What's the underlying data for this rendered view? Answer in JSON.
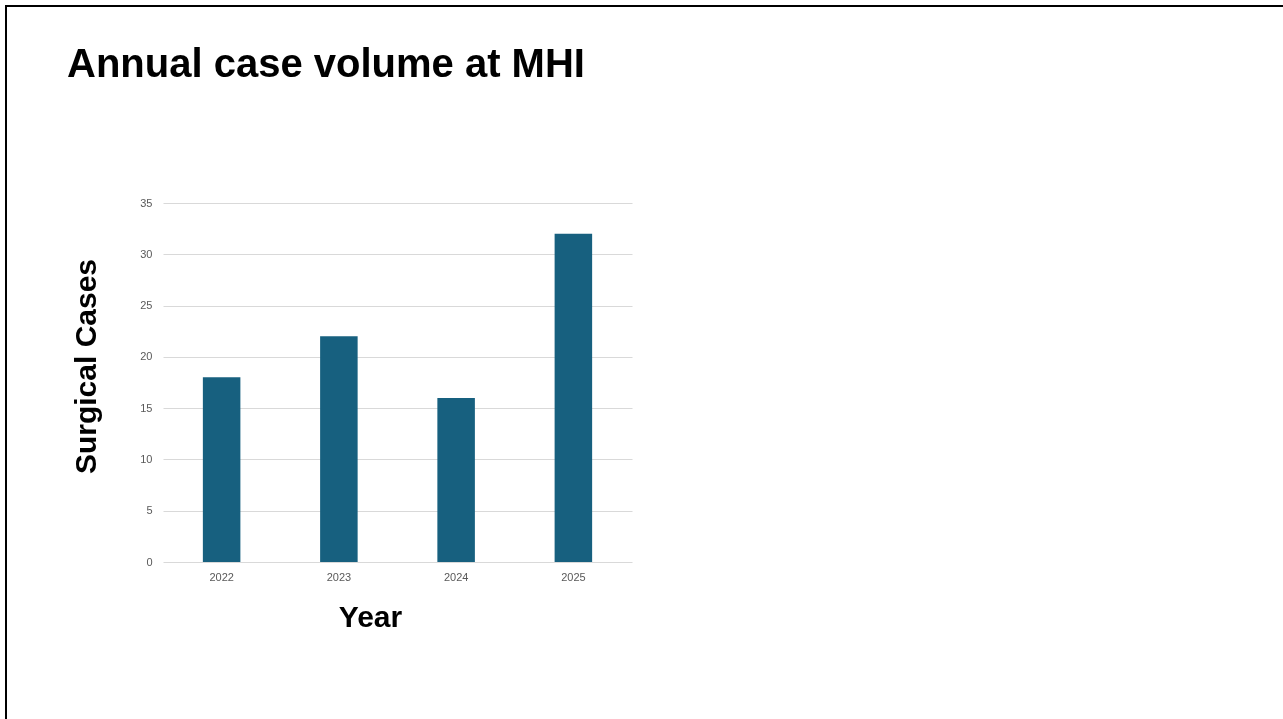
{
  "chart_data": {
    "type": "bar",
    "title": "Annual case volume at MHI",
    "xlabel": "Year",
    "ylabel": "Surgical Cases",
    "categories": [
      "2022",
      "2023",
      "2024",
      "2025"
    ],
    "values": [
      18,
      22,
      16,
      32
    ],
    "color": "#17607f",
    "ylim": [
      0,
      35
    ],
    "yticks": [
      0,
      5,
      10,
      15,
      20,
      25,
      30,
      35
    ],
    "grid": "y"
  }
}
